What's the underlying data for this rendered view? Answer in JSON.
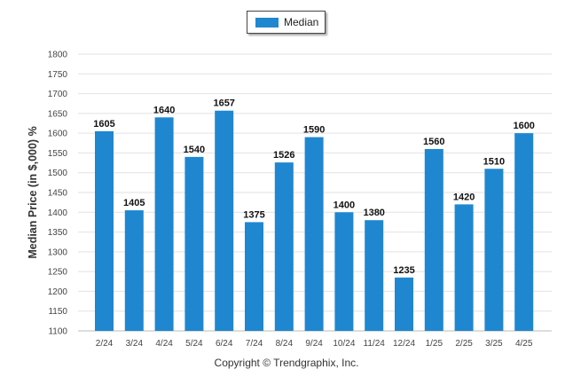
{
  "legend": {
    "label": "Median"
  },
  "copyright": "Copyright © Trendgraphix, Inc.",
  "colors": {
    "bar": "#1f87d0",
    "grid": "#e2e2e2"
  },
  "chart_data": {
    "type": "bar",
    "categories": [
      "2/24",
      "3/24",
      "4/24",
      "5/24",
      "6/24",
      "7/24",
      "8/24",
      "9/24",
      "10/24",
      "11/24",
      "12/24",
      "1/25",
      "2/25",
      "3/25",
      "4/25"
    ],
    "series": [
      {
        "name": "Median",
        "values": [
          1605,
          1405,
          1640,
          1540,
          1657,
          1375,
          1526,
          1590,
          1400,
          1380,
          1235,
          1560,
          1420,
          1510,
          1600
        ]
      }
    ],
    "ylabel": "Median Price (in $,000) %",
    "ylim": [
      1100,
      1800
    ],
    "yticks": [
      1100,
      1150,
      1200,
      1250,
      1300,
      1350,
      1400,
      1450,
      1500,
      1550,
      1600,
      1650,
      1700,
      1750,
      1800
    ],
    "grid": true,
    "legend_position": "top-center"
  }
}
